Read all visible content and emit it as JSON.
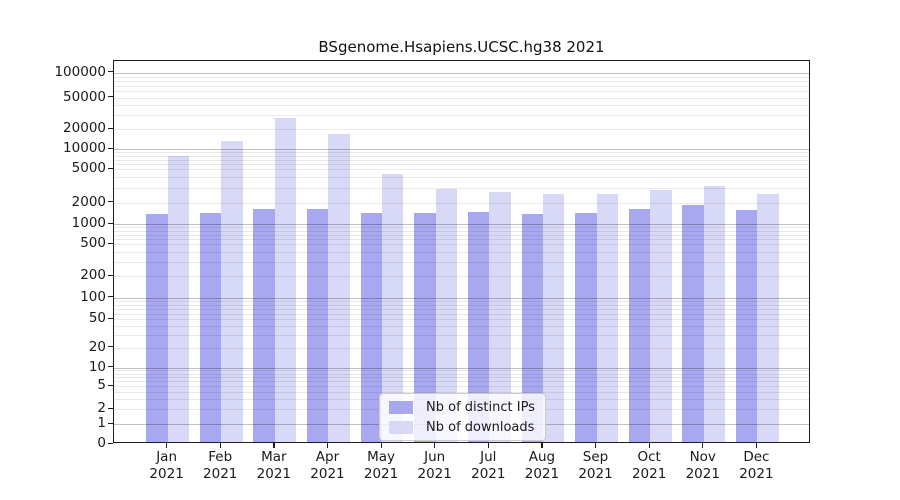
{
  "title": "BSgenome.Hsapiens.UCSC.hg38 2021",
  "chart_data": {
    "type": "bar",
    "title": "BSgenome.Hsapiens.UCSC.hg38 2021",
    "categories": [
      "Jan 2021",
      "Feb 2021",
      "Mar 2021",
      "Apr 2021",
      "May 2021",
      "Jun 2021",
      "Jul 2021",
      "Aug 2021",
      "Sep 2021",
      "Oct 2021",
      "Nov 2021",
      "Dec 2021"
    ],
    "x_months": [
      "Jan",
      "Feb",
      "Mar",
      "Apr",
      "May",
      "Jun",
      "Jul",
      "Aug",
      "Sep",
      "Oct",
      "Nov",
      "Dec"
    ],
    "x_year": "2021",
    "series": [
      {
        "name": "Nb of distinct IPs",
        "color": "#a8a8f0",
        "values": [
          1400,
          1420,
          1630,
          1660,
          1450,
          1450,
          1500,
          1410,
          1450,
          1650,
          1880,
          1600
        ]
      },
      {
        "name": "Nb of downloads",
        "color": "#d8d8f7",
        "values": [
          8000,
          13200,
          27400,
          17000,
          4400,
          2900,
          2700,
          2520,
          2560,
          2860,
          3160,
          2560
        ]
      }
    ],
    "yscale": "symlog",
    "y_ticks": [
      0,
      1,
      2,
      5,
      10,
      20,
      50,
      100,
      200,
      500,
      1000,
      2000,
      5000,
      10000,
      20000,
      50000,
      100000
    ],
    "ylim": [
      0,
      128000
    ],
    "xlabel": "",
    "ylabel": "",
    "grid": "horizontal major and minor gridlines drawn over bars",
    "legend_position": "lower center inside plot"
  }
}
